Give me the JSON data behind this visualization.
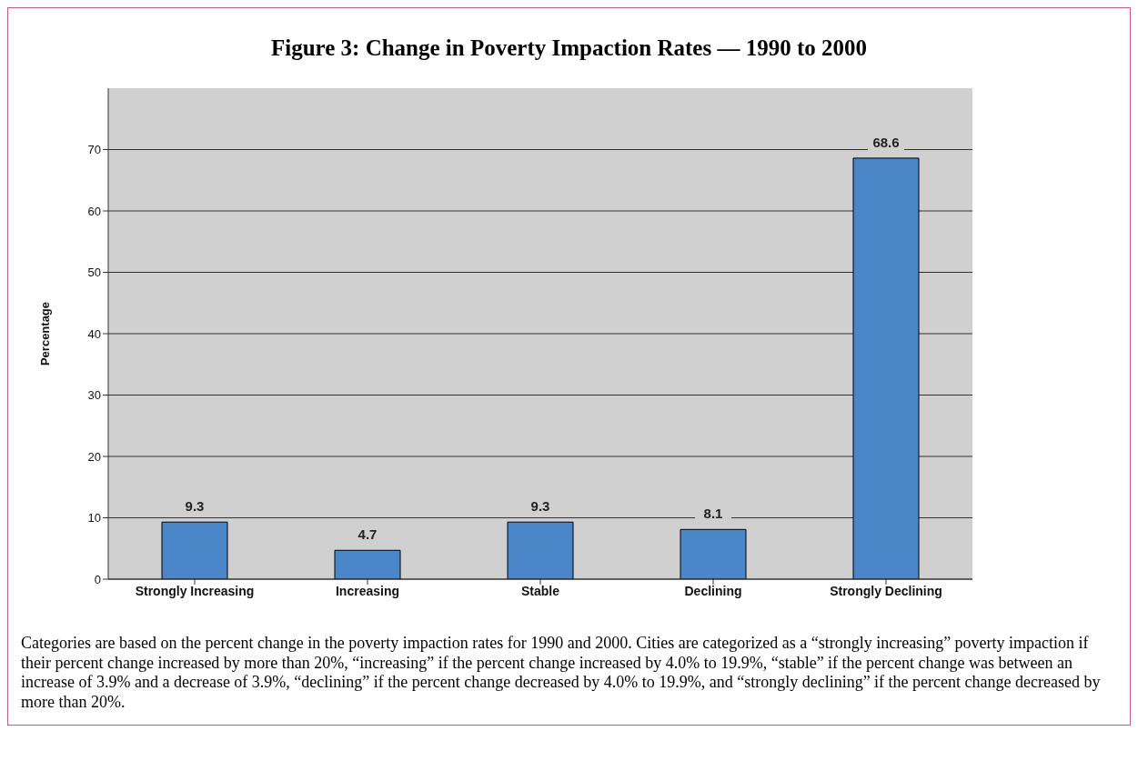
{
  "chart_data": {
    "type": "bar",
    "title": "Figure 3: Change in Poverty Impaction Rates — 1990 to 2000",
    "ylabel": "Percentage",
    "categories": [
      "Strongly Increasing",
      "Increasing",
      "Stable",
      "Declining",
      "Strongly Declining"
    ],
    "values": [
      9.3,
      4.7,
      9.3,
      8.1,
      68.6
    ],
    "color": "#4a86c8",
    "ylim": [
      0,
      80
    ],
    "yticks": [
      0,
      10,
      20,
      30,
      40,
      50,
      60,
      70
    ],
    "grid": "y",
    "data_labels": true,
    "annotations": [
      "Categories are based on the percent change in the poverty impaction rates for 1990 and 2000. Cities are categorized as a “strongly increasing” poverty impaction if their percent change increased by more than 20%, “increasing” if the percent change increased by 4.0% to 19.9%, “stable” if the percent change was between an increase of 3.9% and a decrease of 3.9%, “declining” if the percent change decreased by 4.0% to 19.9%, and “strongly declining” if the percent change decreased by more than 20%."
    ]
  }
}
